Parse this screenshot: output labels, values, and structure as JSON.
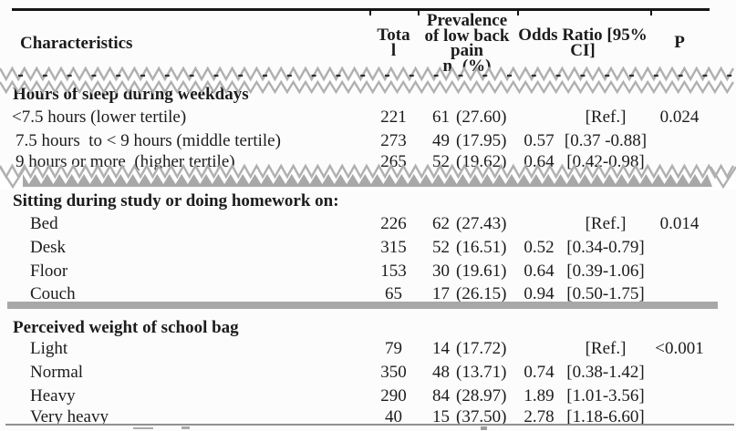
{
  "header": {
    "characteristics": "Characteristics",
    "total": "Tota l",
    "prevalence": "Prevalence of low back pain",
    "prevalence_sub": "n  (%)",
    "odds_ratio": "Odds Ratio [95% CI]",
    "p": "P"
  },
  "sections": [
    {
      "title": "Hours of sleep during weekdays",
      "rows": [
        {
          "label": "<7.5 hours (lower tertile)",
          "total": "221",
          "n": "61",
          "pct": "(27.60)",
          "or": "",
          "ci": "[Ref.]",
          "p": "0.024"
        },
        {
          "label": "7.5 hours  to < 9 hours (middle tertile)",
          "total": "273",
          "n": "49",
          "pct": "(17.95)",
          "or": "0.57",
          "ci": "[0.37 -0.88]",
          "p": ""
        },
        {
          "label": "9 hours or more  (higher tertile)",
          "total": "265",
          "n": "52",
          "pct": "(19.62)",
          "or": "0.64",
          "ci": "[0.42-0.98]",
          "p": ""
        }
      ]
    },
    {
      "title": "Sitting during study or doing homework on:",
      "rows": [
        {
          "label": "Bed",
          "total": "226",
          "n": "62",
          "pct": "(27.43)",
          "or": "",
          "ci": "[Ref.]",
          "p": "0.014"
        },
        {
          "label": "Desk",
          "total": "315",
          "n": "52",
          "pct": "(16.51)",
          "or": "0.52",
          "ci": "[0.34-0.79]",
          "p": ""
        },
        {
          "label": "Floor",
          "total": "153",
          "n": "30",
          "pct": "(19.61)",
          "or": "0.64",
          "ci": "[0.39-1.06]",
          "p": ""
        },
        {
          "label": "Couch",
          "total": "65",
          "n": "17",
          "pct": "(26.15)",
          "or": "0.94",
          "ci": "[0.50-1.75]",
          "p": ""
        }
      ]
    },
    {
      "title": "Perceived weight of school bag",
      "rows": [
        {
          "label": "Light",
          "total": "79",
          "n": "14",
          "pct": "(17.72)",
          "or": "",
          "ci": "[Ref.]",
          "p": "<0.001"
        },
        {
          "label": "Normal",
          "total": "350",
          "n": "48",
          "pct": "(13.71)",
          "or": "0.74",
          "ci": "[0.38-1.42]",
          "p": ""
        },
        {
          "label": "Heavy",
          "total": "290",
          "n": "84",
          "pct": "(28.97)",
          "or": "1.89",
          "ci": "[1.01-3.56]",
          "p": ""
        },
        {
          "label": "Very heavy",
          "total": "40",
          "n": "15",
          "pct": "(37.50)",
          "or": "2.78",
          "ci": "[1.18-6.60]",
          "p": ""
        }
      ]
    }
  ],
  "colors": {
    "rule_black": "#151515",
    "zigzag_gray": "#b0b0b0",
    "bar_gray": "#a8a8a8",
    "text": "#1c1c1c"
  }
}
